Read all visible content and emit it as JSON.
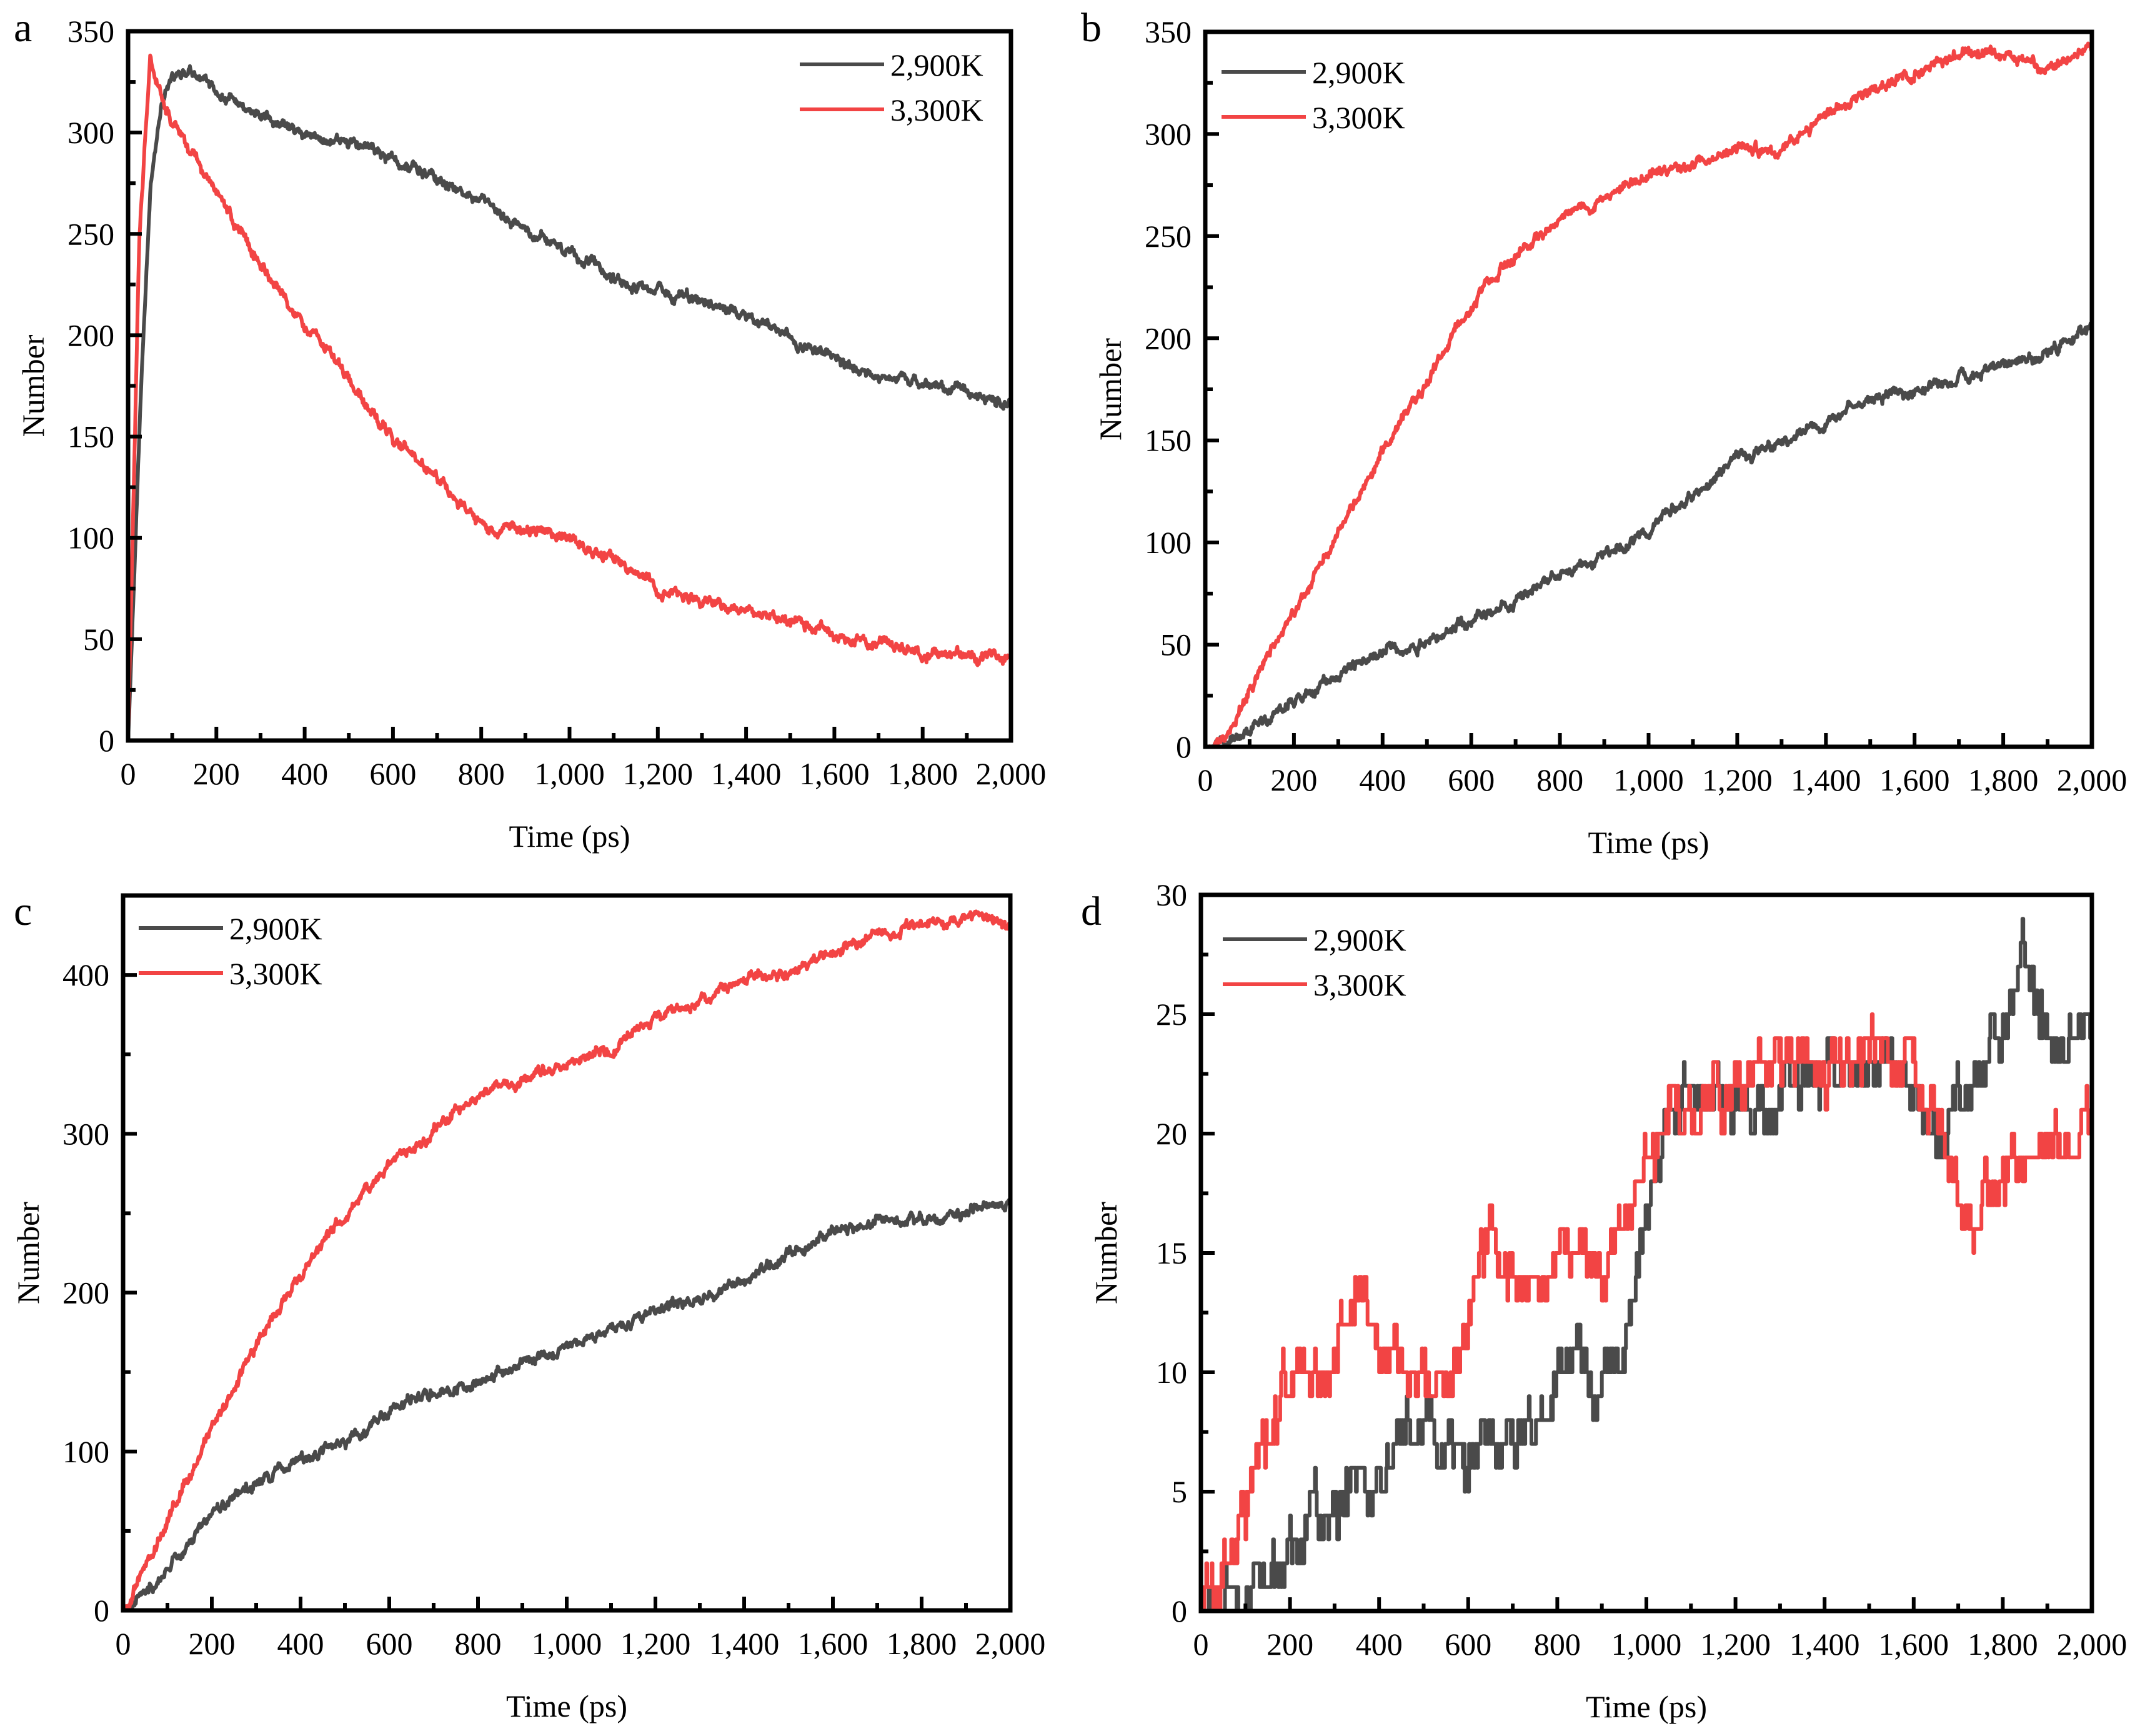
{
  "figure": {
    "colors": {
      "series_2900K": "#4a4a4a",
      "series_3300K": "#f24444",
      "axis": "#000000"
    }
  },
  "chart_data": [
    {
      "panel": "a",
      "type": "line",
      "title": "",
      "xlabel": "Time (ps)",
      "ylabel": "Number",
      "xlim": [
        0,
        2000
      ],
      "ylim": [
        0,
        350
      ],
      "xticks": [
        "0",
        "200",
        "400",
        "600",
        "800",
        "1,000",
        "1,200",
        "1,400",
        "1,600",
        "1,800",
        "2,000"
      ],
      "yticks": [
        "0",
        "50",
        "100",
        "150",
        "200",
        "250",
        "300",
        "350"
      ],
      "ytick_values": [
        0,
        50,
        100,
        150,
        200,
        250,
        300,
        350
      ],
      "legend_position": "top-right",
      "grid": false,
      "series": [
        {
          "name": "2,900K",
          "color": "#4a4a4a",
          "x": [
            0,
            25,
            50,
            75,
            100,
            150,
            200,
            300,
            400,
            500,
            600,
            700,
            800,
            900,
            1000,
            1100,
            1200,
            1300,
            1400,
            1500,
            1600,
            1700,
            1800,
            1900,
            2000
          ],
          "y": [
            0,
            150,
            270,
            315,
            330,
            330,
            320,
            308,
            298,
            296,
            287,
            278,
            265,
            252,
            240,
            228,
            222,
            216,
            210,
            198,
            188,
            180,
            175,
            172,
            166
          ]
        },
        {
          "name": "3,300K",
          "color": "#f24444",
          "x": [
            0,
            25,
            50,
            75,
            100,
            200,
            300,
            400,
            500,
            600,
            700,
            800,
            900,
            1000,
            1100,
            1200,
            1300,
            1400,
            1500,
            1600,
            1700,
            1800,
            1900,
            2000
          ],
          "y": [
            0,
            250,
            338,
            320,
            305,
            270,
            235,
            205,
            178,
            150,
            130,
            107,
            103,
            100,
            90,
            75,
            69,
            64,
            59,
            52,
            48,
            43,
            42,
            40
          ]
        }
      ]
    },
    {
      "panel": "b",
      "type": "line",
      "title": "",
      "xlabel": "Time (ps)",
      "ylabel": "Number",
      "xlim": [
        0,
        2000
      ],
      "ylim": [
        0,
        350
      ],
      "xticks": [
        "0",
        "200",
        "400",
        "600",
        "800",
        "1,000",
        "1,200",
        "1,400",
        "1,600",
        "1,800",
        "2,000"
      ],
      "yticks": [
        "0",
        "50",
        "100",
        "150",
        "200",
        "250",
        "300",
        "350"
      ],
      "ytick_values": [
        0,
        50,
        100,
        150,
        200,
        250,
        300,
        350
      ],
      "legend_position": "top-left",
      "grid": false,
      "series": [
        {
          "name": "2,900K",
          "color": "#4a4a4a",
          "x": [
            0,
            100,
            200,
            300,
            400,
            500,
            600,
            700,
            800,
            900,
            1000,
            1100,
            1200,
            1300,
            1400,
            1500,
            1600,
            1700,
            1800,
            1900,
            2000
          ],
          "y": [
            0,
            8,
            22,
            35,
            47,
            51,
            62,
            72,
            85,
            93,
            106,
            124,
            140,
            148,
            160,
            170,
            173,
            180,
            187,
            193,
            206
          ]
        },
        {
          "name": "3,300K",
          "color": "#f24444",
          "x": [
            0,
            50,
            100,
            200,
            300,
            400,
            500,
            600,
            700,
            800,
            900,
            1000,
            1100,
            1200,
            1300,
            1400,
            1500,
            1600,
            1700,
            1800,
            1900,
            2000
          ],
          "y": [
            0,
            5,
            28,
            65,
            105,
            145,
            178,
            218,
            240,
            258,
            268,
            280,
            284,
            292,
            292,
            310,
            320,
            330,
            340,
            340,
            333,
            340
          ]
        }
      ]
    },
    {
      "panel": "c",
      "type": "line",
      "title": "",
      "xlabel": "Time (ps)",
      "ylabel": "Number",
      "xlim": [
        0,
        2000
      ],
      "ylim": [
        0,
        450
      ],
      "xticks": [
        "0",
        "200",
        "400",
        "600",
        "800",
        "1,000",
        "1,200",
        "1,400",
        "1,600",
        "1,800",
        "2,000"
      ],
      "yticks": [
        "0",
        "100",
        "200",
        "300",
        "400"
      ],
      "ytick_values": [
        0,
        100,
        200,
        300,
        400
      ],
      "legend_position": "top-left",
      "grid": false,
      "series": [
        {
          "name": "2,900K",
          "color": "#4a4a4a",
          "x": [
            0,
            100,
            200,
            300,
            400,
            500,
            600,
            700,
            800,
            900,
            1000,
            1100,
            1200,
            1300,
            1400,
            1500,
            1600,
            1700,
            1800,
            1900,
            2000
          ],
          "y": [
            0,
            25,
            60,
            80,
            95,
            105,
            125,
            138,
            145,
            156,
            165,
            178,
            188,
            197,
            210,
            225,
            236,
            245,
            245,
            250,
            258
          ]
        },
        {
          "name": "3,300K",
          "color": "#f24444",
          "x": [
            0,
            100,
            200,
            300,
            400,
            500,
            600,
            700,
            800,
            900,
            1000,
            1100,
            1200,
            1300,
            1400,
            1500,
            1600,
            1700,
            1800,
            1900,
            2000
          ],
          "y": [
            0,
            55,
            115,
            165,
            212,
            250,
            280,
            300,
            325,
            335,
            343,
            352,
            372,
            382,
            398,
            402,
            415,
            425,
            432,
            435,
            432
          ]
        }
      ]
    },
    {
      "panel": "d",
      "type": "line",
      "title": "",
      "xlabel": "Time (ps)",
      "ylabel": "Number",
      "xlim": [
        0,
        2000
      ],
      "ylim": [
        0,
        30
      ],
      "xticks": [
        "0",
        "200",
        "400",
        "600",
        "800",
        "1,000",
        "1,200",
        "1,400",
        "1,600",
        "1,800",
        "2,000"
      ],
      "yticks": [
        "0",
        "5",
        "10",
        "15",
        "20",
        "25",
        "30"
      ],
      "ytick_values": [
        0,
        5,
        10,
        15,
        20,
        25,
        30
      ],
      "legend_position": "top-left",
      "grid": false,
      "series": [
        {
          "name": "2,900K",
          "color": "#4a4a4a",
          "x": [
            0,
            100,
            150,
            200,
            250,
            300,
            400,
            500,
            600,
            700,
            800,
            850,
            900,
            950,
            1000,
            1050,
            1100,
            1200,
            1300,
            1400,
            1500,
            1600,
            1650,
            1700,
            1750,
            1800,
            1850,
            1900,
            2000
          ],
          "y": [
            0,
            0,
            1,
            2,
            4,
            5,
            6,
            8,
            7,
            7,
            9,
            11,
            9,
            11,
            16,
            21,
            22,
            21,
            22,
            22,
            23,
            22,
            20,
            22,
            23,
            25,
            27,
            24,
            25
          ]
        },
        {
          "name": "3,300K",
          "color": "#f24444",
          "x": [
            0,
            50,
            100,
            150,
            200,
            300,
            350,
            400,
            500,
            550,
            600,
            650,
            700,
            800,
            900,
            1000,
            1050,
            1100,
            1200,
            1300,
            1400,
            1500,
            1600,
            1650,
            1700,
            1750,
            1800,
            1900,
            2000
          ],
          "y": [
            0,
            2,
            5,
            8,
            10,
            10,
            13,
            11,
            10,
            9,
            14,
            16,
            14,
            15,
            14,
            18,
            21,
            22,
            22,
            23,
            23,
            24,
            22,
            21,
            17,
            16,
            18,
            20,
            20
          ]
        }
      ]
    }
  ]
}
